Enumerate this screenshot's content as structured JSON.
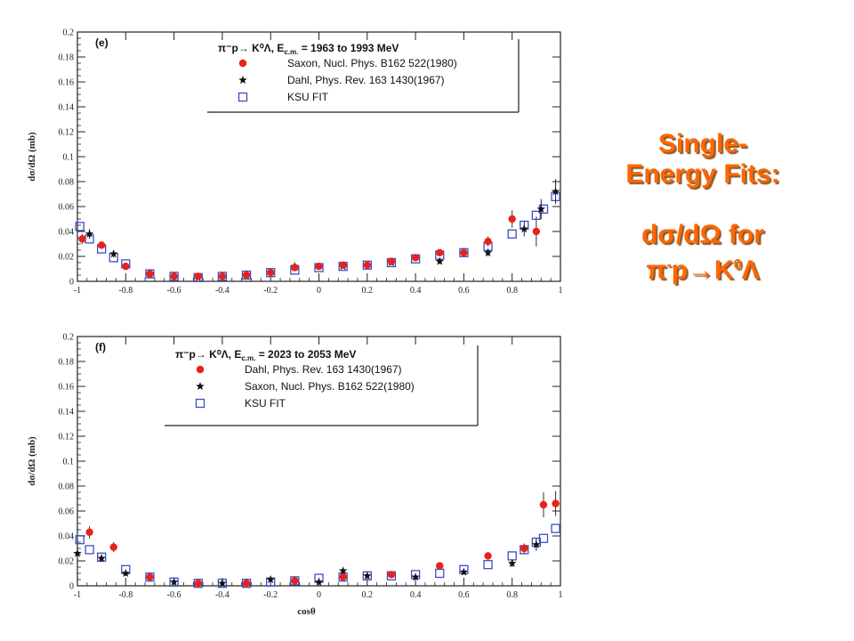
{
  "side_text": {
    "line1": "Single-",
    "line2": "Energy Fits:",
    "line3": "dσ/dΩ for",
    "line4_a": "π",
    "line4_sup1": "-",
    "line4_b": "p→K",
    "line4_sup2": "0",
    "line4_c": "Λ"
  },
  "chart_data": [
    {
      "type": "scatter",
      "panel_label": "(e)",
      "legend_title": "π⁻p→ K⁰Λ, E",
      "legend_title_sub": "c.m.",
      "legend_title_tail": " = 1963 to 1993 MeV",
      "ylabel": "dσ/dΩ (mb)",
      "xlabel": "",
      "xlim": [
        -1,
        1
      ],
      "ylim": [
        0,
        0.2
      ],
      "xticks": [
        "-1",
        "-0.8",
        "-0.6",
        "-0.4",
        "-0.2",
        "0",
        "0.2",
        "0.4",
        "0.6",
        "0.8",
        "1"
      ],
      "yticks": [
        "0",
        "0.02",
        "0.04",
        "0.06",
        "0.08",
        "0.1",
        "0.12",
        "0.14",
        "0.16",
        "0.18",
        "0.2"
      ],
      "series": [
        {
          "name": "Saxon, Nucl. Phys. B162 522(1980)",
          "marker": "circle",
          "color": "#e8221b",
          "points": [
            [
              -0.98,
              0.034,
              0.004
            ],
            [
              -0.9,
              0.029,
              0.003
            ],
            [
              -0.8,
              0.012,
              0.002
            ],
            [
              -0.7,
              0.006,
              0.001
            ],
            [
              -0.6,
              0.004,
              0.001
            ],
            [
              -0.5,
              0.004,
              0.001
            ],
            [
              -0.4,
              0.004,
              0.001
            ],
            [
              -0.3,
              0.005,
              0.001
            ],
            [
              -0.2,
              0.007,
              0.001
            ],
            [
              -0.1,
              0.011,
              0.001
            ],
            [
              0.0,
              0.012,
              0.001
            ],
            [
              0.1,
              0.013,
              0.001
            ],
            [
              0.2,
              0.013,
              0.001
            ],
            [
              0.3,
              0.016,
              0.001
            ],
            [
              0.4,
              0.019,
              0.002
            ],
            [
              0.5,
              0.023,
              0.002
            ],
            [
              0.6,
              0.023,
              0.002
            ],
            [
              0.7,
              0.032,
              0.004
            ],
            [
              0.8,
              0.05,
              0.007
            ],
            [
              0.9,
              0.04,
              0.012
            ]
          ]
        },
        {
          "name": "Dahl, Phys. Rev. 163 1430(1967)",
          "marker": "star",
          "color": "#111111",
          "points": [
            [
              -0.95,
              0.038,
              0.004
            ],
            [
              -0.85,
              0.022,
              0.003
            ],
            [
              -0.7,
              0.006,
              0.001
            ],
            [
              -0.5,
              0.003,
              0.001
            ],
            [
              -0.3,
              0.005,
              0.001
            ],
            [
              -0.1,
              0.012,
              0.002
            ],
            [
              0.1,
              0.012,
              0.002
            ],
            [
              0.3,
              0.015,
              0.002
            ],
            [
              0.5,
              0.016,
              0.002
            ],
            [
              0.7,
              0.023,
              0.003
            ],
            [
              0.85,
              0.042,
              0.006
            ],
            [
              0.92,
              0.058,
              0.008
            ],
            [
              0.98,
              0.072,
              0.01
            ]
          ]
        },
        {
          "name": "KSU FIT",
          "marker": "square",
          "color": "#3b4fc4",
          "points": [
            [
              -0.99,
              0.044
            ],
            [
              -0.95,
              0.034
            ],
            [
              -0.9,
              0.026
            ],
            [
              -0.85,
              0.019
            ],
            [
              -0.8,
              0.014
            ],
            [
              -0.7,
              0.006
            ],
            [
              -0.6,
              0.004
            ],
            [
              -0.5,
              0.003
            ],
            [
              -0.4,
              0.004
            ],
            [
              -0.3,
              0.005
            ],
            [
              -0.2,
              0.007
            ],
            [
              -0.1,
              0.009
            ],
            [
              0.0,
              0.011
            ],
            [
              0.1,
              0.012
            ],
            [
              0.2,
              0.013
            ],
            [
              0.3,
              0.015
            ],
            [
              0.4,
              0.018
            ],
            [
              0.5,
              0.021
            ],
            [
              0.6,
              0.023
            ],
            [
              0.7,
              0.028
            ],
            [
              0.8,
              0.038
            ],
            [
              0.85,
              0.045
            ],
            [
              0.9,
              0.053
            ],
            [
              0.93,
              0.058
            ],
            [
              0.98,
              0.068
            ]
          ]
        }
      ]
    },
    {
      "type": "scatter",
      "panel_label": "(f)",
      "legend_title": "π⁻p→ K⁰Λ, E",
      "legend_title_sub": "c.m.",
      "legend_title_tail": " = 2023 to 2053 MeV",
      "ylabel": "dσ/dΩ (mb)",
      "xlabel": "cosθ",
      "xlim": [
        -1,
        1
      ],
      "ylim": [
        0,
        0.2
      ],
      "xticks": [
        "-1",
        "-0.8",
        "-0.6",
        "-0.4",
        "-0.2",
        "0",
        "0.2",
        "0.4",
        "0.6",
        "0.8",
        "1"
      ],
      "yticks": [
        "0",
        "0.02",
        "0.04",
        "0.06",
        "0.08",
        "0.1",
        "0.12",
        "0.14",
        "0.16",
        "0.18",
        "0.2"
      ],
      "series": [
        {
          "name": "Dahl, Phys. Rev. 163 1430(1967)",
          "marker": "circle",
          "color": "#e8221b",
          "points": [
            [
              -0.95,
              0.043,
              0.005
            ],
            [
              -0.85,
              0.031,
              0.004
            ],
            [
              -0.7,
              0.007,
              0.001
            ],
            [
              -0.5,
              0.002,
              0.001
            ],
            [
              -0.3,
              0.002,
              0.001
            ],
            [
              -0.1,
              0.004,
              0.001
            ],
            [
              0.1,
              0.007,
              0.001
            ],
            [
              0.3,
              0.009,
              0.001
            ],
            [
              0.5,
              0.016,
              0.002
            ],
            [
              0.7,
              0.024,
              0.003
            ],
            [
              0.85,
              0.03,
              0.004
            ],
            [
              0.93,
              0.065,
              0.01
            ],
            [
              0.98,
              0.066,
              0.01
            ]
          ]
        },
        {
          "name": "Saxon, Nucl. Phys. B162 522(1980)",
          "marker": "star",
          "color": "#111111",
          "points": [
            [
              -1.0,
              0.026,
              0.003
            ],
            [
              -0.9,
              0.022,
              0.003
            ],
            [
              -0.8,
              0.01,
              0.002
            ],
            [
              -0.6,
              0.003,
              0.001
            ],
            [
              -0.4,
              0.002,
              0.001
            ],
            [
              -0.2,
              0.005,
              0.001
            ],
            [
              0.0,
              0.003,
              0.001
            ],
            [
              0.1,
              0.012,
              0.002
            ],
            [
              0.2,
              0.008,
              0.001
            ],
            [
              0.4,
              0.007,
              0.001
            ],
            [
              0.6,
              0.011,
              0.002
            ],
            [
              0.8,
              0.018,
              0.003
            ],
            [
              0.9,
              0.033,
              0.005
            ]
          ]
        },
        {
          "name": "KSU FIT",
          "marker": "square",
          "color": "#3b4fc4",
          "points": [
            [
              -0.99,
              0.037
            ],
            [
              -0.95,
              0.029
            ],
            [
              -0.9,
              0.023
            ],
            [
              -0.8,
              0.013
            ],
            [
              -0.7,
              0.007
            ],
            [
              -0.6,
              0.003
            ],
            [
              -0.5,
              0.002
            ],
            [
              -0.4,
              0.002
            ],
            [
              -0.3,
              0.002
            ],
            [
              -0.2,
              0.003
            ],
            [
              -0.1,
              0.004
            ],
            [
              0.0,
              0.006
            ],
            [
              0.1,
              0.007
            ],
            [
              0.2,
              0.008
            ],
            [
              0.3,
              0.008
            ],
            [
              0.4,
              0.009
            ],
            [
              0.5,
              0.01
            ],
            [
              0.6,
              0.013
            ],
            [
              0.7,
              0.017
            ],
            [
              0.8,
              0.024
            ],
            [
              0.85,
              0.029
            ],
            [
              0.9,
              0.035
            ],
            [
              0.93,
              0.038
            ],
            [
              0.98,
              0.046
            ]
          ]
        }
      ]
    }
  ]
}
